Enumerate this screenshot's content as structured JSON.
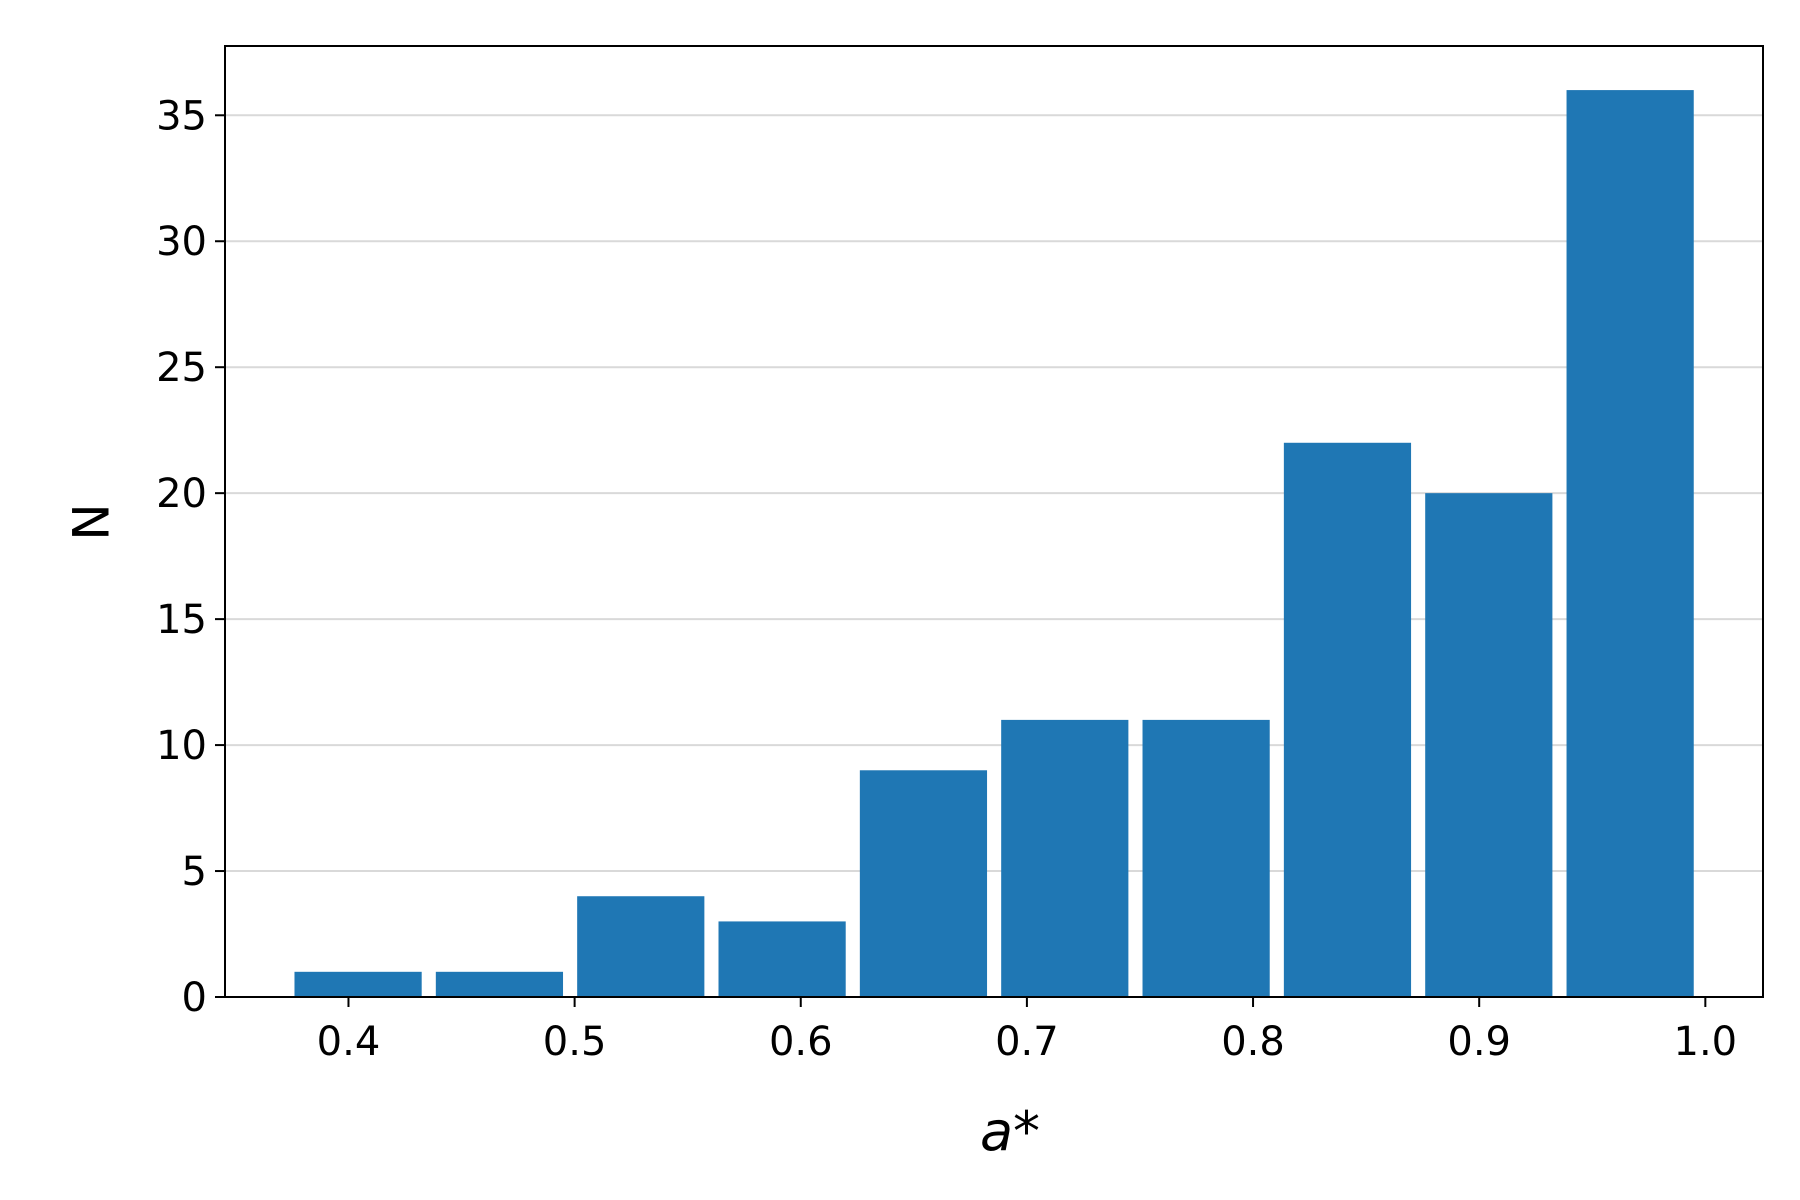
{
  "chart_data": {
    "type": "histogram",
    "xlabel": "a*",
    "ylabel": "N",
    "bins": [
      0.373,
      0.4355,
      0.498,
      0.5605,
      0.623,
      0.6855,
      0.748,
      0.8105,
      0.873,
      0.9355,
      0.998
    ],
    "values": [
      1,
      1,
      4,
      3,
      9,
      11,
      11,
      22,
      20,
      36
    ],
    "color": "#1f77b4",
    "xlim": [
      0.3454,
      1.0255
    ],
    "xticks": [
      0.4,
      0.5,
      0.6,
      0.7,
      0.8,
      0.9,
      {
        "value": 1.0,
        "label": "1.0"
      }
    ],
    "ylim": [
      0,
      37.75
    ],
    "yticks": [
      0,
      5,
      10,
      15,
      20,
      25,
      30,
      35
    ],
    "grid": "y"
  }
}
